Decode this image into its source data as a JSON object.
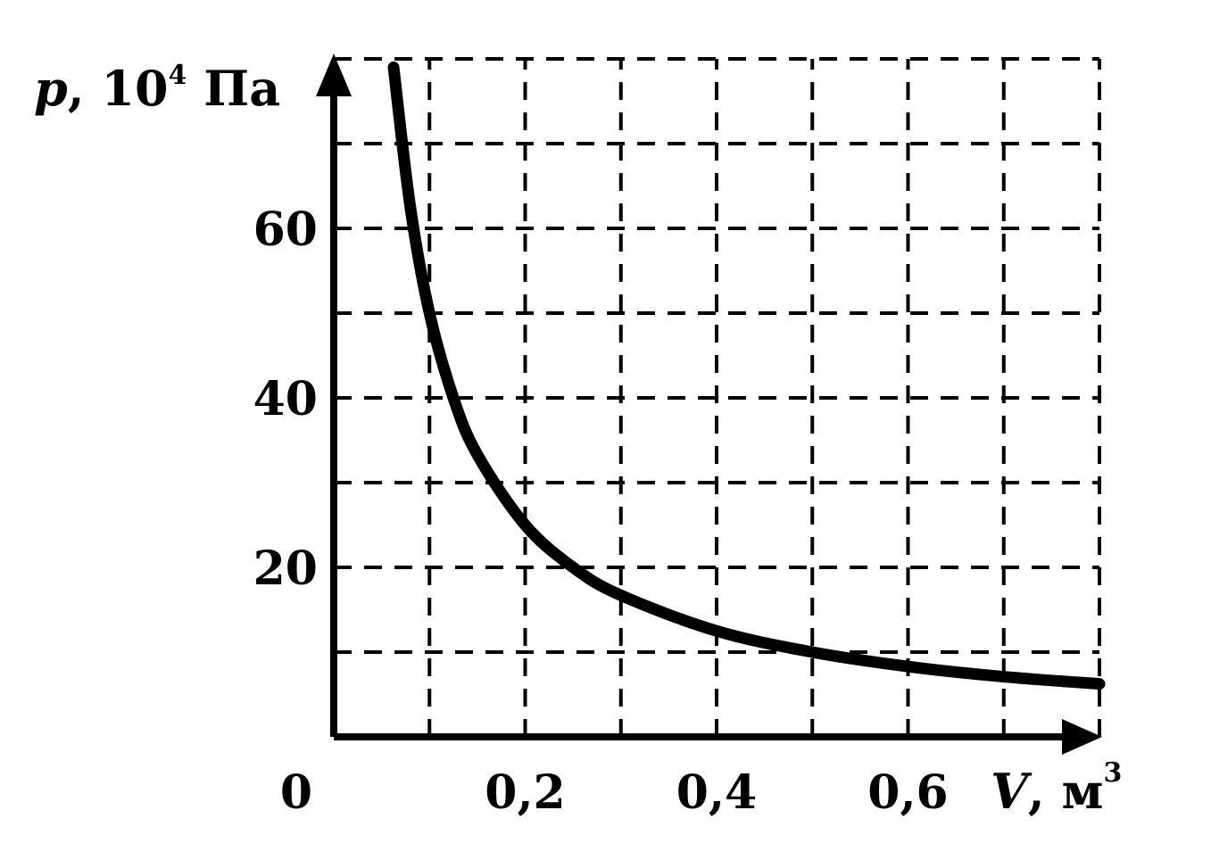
{
  "chart_data": {
    "type": "line",
    "title": "",
    "xlabel": {
      "symbol": "V",
      "sep": ", ",
      "unit": "м",
      "unit_sup": "3"
    },
    "ylabel": {
      "symbol": "p",
      "sep": ", ",
      "prefix": "10",
      "prefix_sup": "4",
      "unit": " Па"
    },
    "xlim": [
      0,
      0.8
    ],
    "ylim": [
      0,
      80
    ],
    "x_tick_labels": [
      "0,2",
      "0,4",
      "0,6"
    ],
    "x_tick_values": [
      0.2,
      0.4,
      0.6
    ],
    "y_tick_labels": [
      "20",
      "40",
      "60"
    ],
    "y_tick_values": [
      20,
      40,
      60
    ],
    "origin_label": "0",
    "grid": {
      "visible": true,
      "style": "dashed",
      "x_step": 0.1,
      "y_step": 10
    },
    "series": [
      {
        "relation": "p*V = 5 (10^4 Па·м^3)",
        "color": "#000000",
        "x": [
          0.08,
          0.1,
          0.125,
          0.15,
          0.2,
          0.25,
          0.3,
          0.4,
          0.5,
          0.6,
          0.7,
          0.8
        ],
        "y": [
          62.5,
          50,
          40,
          33.3,
          25,
          20,
          16.7,
          12.5,
          10,
          8.3,
          7.1,
          6.25
        ]
      }
    ]
  }
}
